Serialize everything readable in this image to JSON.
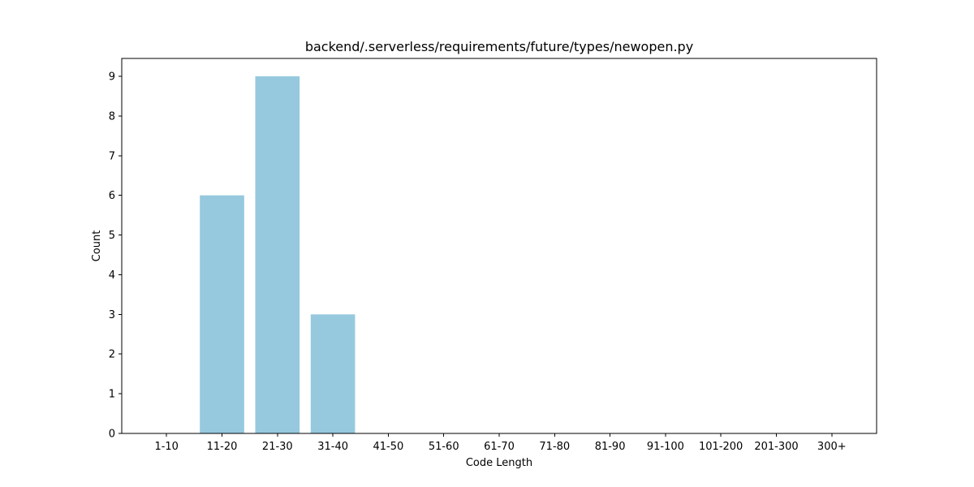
{
  "chart_data": {
    "type": "bar",
    "title": "backend/.serverless/requirements/future/types/newopen.py",
    "xlabel": "Code Length",
    "ylabel": "Count",
    "categories": [
      "1-10",
      "11-20",
      "21-30",
      "31-40",
      "41-50",
      "51-60",
      "61-70",
      "71-80",
      "81-90",
      "91-100",
      "101-200",
      "201-300",
      "300+"
    ],
    "values": [
      0,
      6,
      9,
      3,
      0,
      0,
      0,
      0,
      0,
      0,
      0,
      0,
      0
    ],
    "ylim": [
      0,
      9.45
    ],
    "yticks": [
      0,
      1,
      2,
      3,
      4,
      5,
      6,
      7,
      8,
      9
    ],
    "bar_color": "#96c9de",
    "grid": false,
    "legend": "none"
  }
}
